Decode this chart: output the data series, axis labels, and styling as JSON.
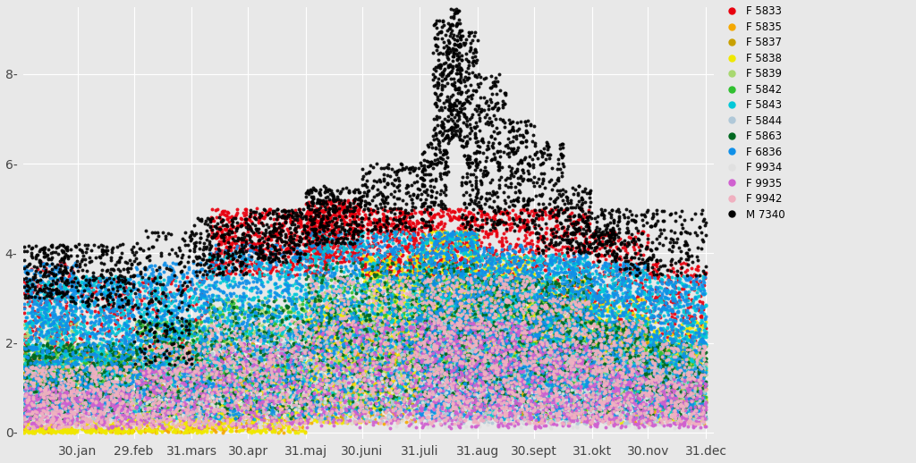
{
  "title": "",
  "xlabel": "",
  "ylabel": "",
  "ylim": [
    -0.15,
    9.5
  ],
  "yticks": [
    0,
    2,
    4,
    6,
    8
  ],
  "background_color": "#e8e8e8",
  "grid_color": "#ffffff",
  "legend_entries": [
    {
      "label": "F 5833",
      "color": "#e8000e"
    },
    {
      "label": "F 5835",
      "color": "#f5a800"
    },
    {
      "label": "F 5837",
      "color": "#c8a000"
    },
    {
      "label": "F 5838",
      "color": "#f0e800"
    },
    {
      "label": "F 5839",
      "color": "#a8d870"
    },
    {
      "label": "F 5842",
      "color": "#30c030"
    },
    {
      "label": "F 5843",
      "color": "#00c8d8"
    },
    {
      "label": "F 5844",
      "color": "#b0c8d8"
    },
    {
      "label": "F 5863",
      "color": "#006820"
    },
    {
      "label": "F 6836",
      "color": "#1090e8"
    },
    {
      "label": "F 9934",
      "color": "#e0e0e0"
    },
    {
      "label": "F 9935",
      "color": "#d060d0"
    },
    {
      "label": "F 9942",
      "color": "#f0b0c0"
    },
    {
      "label": "M 7340",
      "color": "#000000"
    }
  ],
  "month_ticks": [
    30,
    60,
    91,
    121,
    152,
    182,
    213,
    244,
    274,
    305,
    335,
    366
  ],
  "month_labels": [
    "30.jan",
    "29.feb",
    "31.mars",
    "30.apr",
    "31.maj",
    "30.juni",
    "31.juli",
    "31.aug",
    "30.sept",
    "31.okt",
    "30.nov",
    "31.dec"
  ],
  "xlim": [
    1,
    370
  ],
  "point_size": 8,
  "alpha": 0.9,
  "seed": 12345
}
